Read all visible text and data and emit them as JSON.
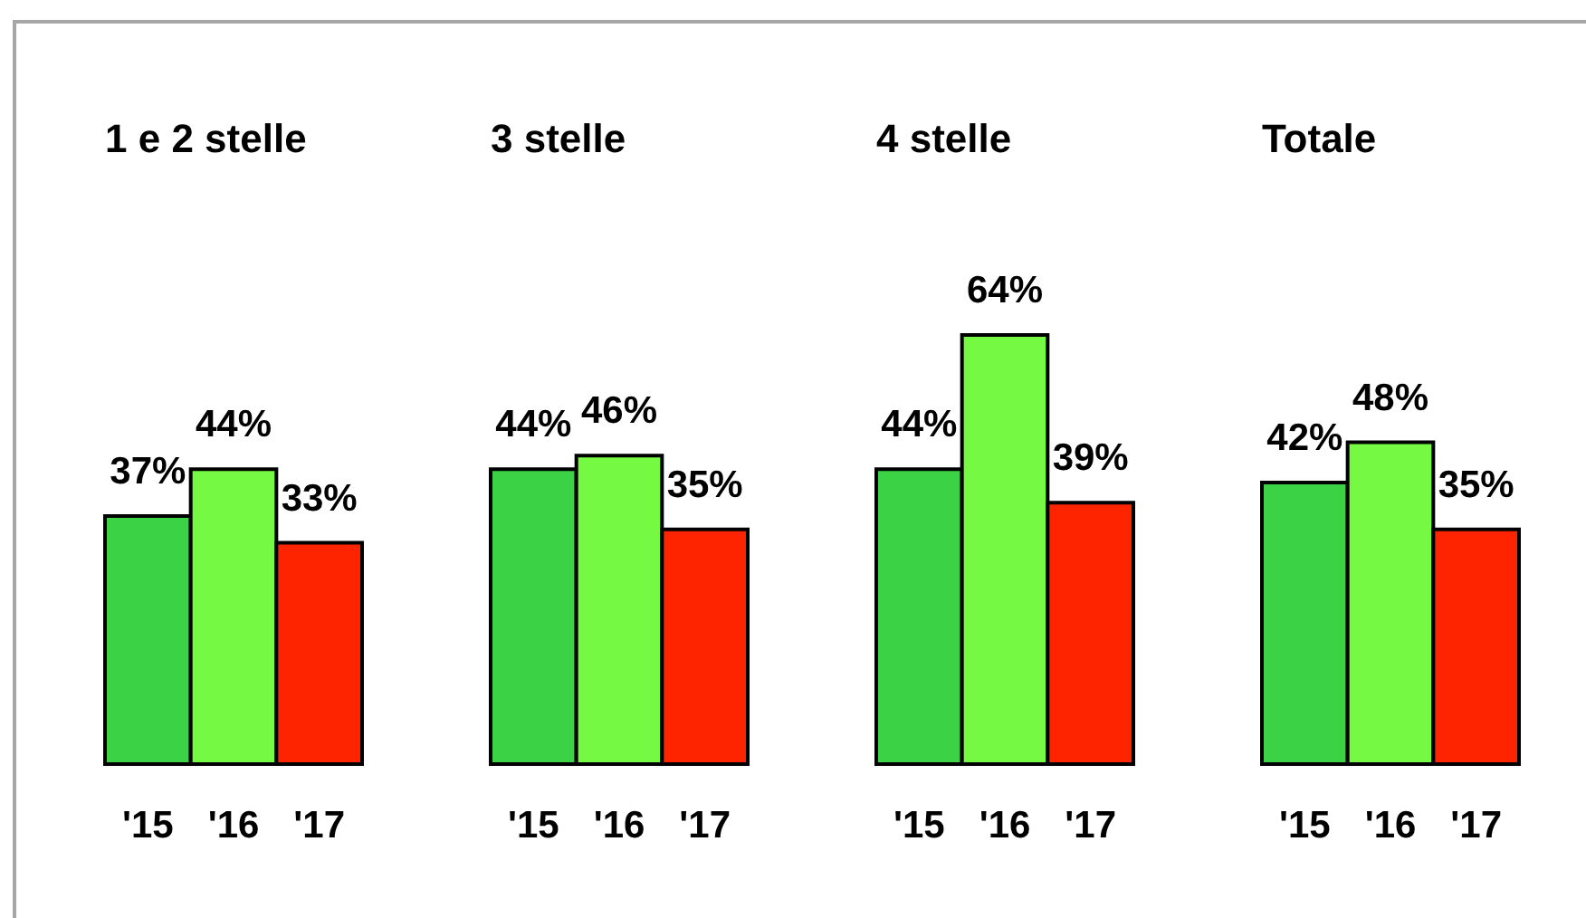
{
  "chart_data": [
    {
      "type": "bar",
      "title": "1 e 2 stelle",
      "categories": [
        "'15",
        "'16",
        "'17"
      ],
      "values": [
        37,
        44,
        33
      ],
      "colors": [
        "#3cd245",
        "#76f942",
        "#ff2400"
      ],
      "value_labels": [
        "37%",
        "44%",
        "33%"
      ],
      "tick_labels": "x"
    },
    {
      "type": "bar",
      "title": "3 stelle",
      "categories": [
        "'15",
        "'16",
        "'17"
      ],
      "values": [
        44,
        46,
        35
      ],
      "colors": [
        "#3cd245",
        "#76f942",
        "#ff2400"
      ],
      "value_labels": [
        "44%",
        "46%",
        "35%"
      ],
      "tick_labels": "x"
    },
    {
      "type": "bar",
      "title": "4 stelle",
      "categories": [
        "'15",
        "'16",
        "'17"
      ],
      "values": [
        44,
        64,
        39
      ],
      "colors": [
        "#3cd245",
        "#76f942",
        "#ff2400"
      ],
      "value_labels": [
        "44%",
        "64%",
        "39%"
      ],
      "tick_labels": "x"
    },
    {
      "type": "bar",
      "title": "Totale",
      "categories": [
        "'15",
        "'16",
        "'17"
      ],
      "values": [
        42,
        48,
        35
      ],
      "colors": [
        "#3cd245",
        "#76f942",
        "#ff2400"
      ],
      "value_labels": [
        "42%",
        "48%",
        "35%"
      ],
      "tick_labels": "x"
    }
  ]
}
